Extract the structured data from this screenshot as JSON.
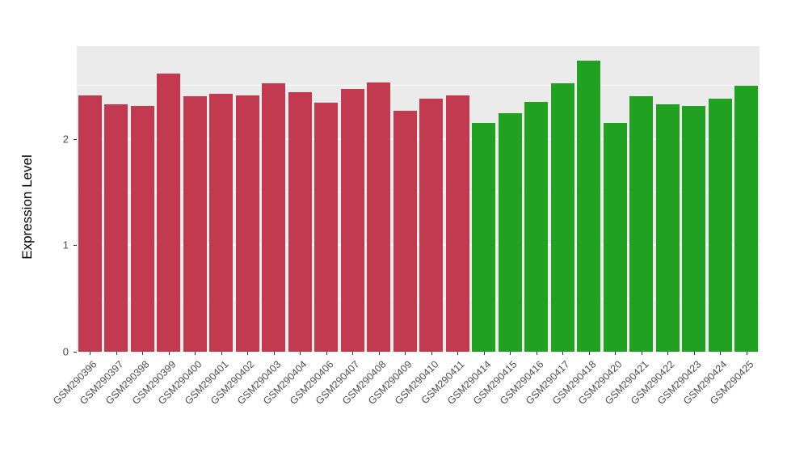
{
  "chart_data": {
    "type": "bar",
    "title": "",
    "xlabel": "",
    "ylabel": "Expression Level",
    "categories": [
      "GSM290396",
      "GSM290397",
      "GSM290398",
      "GSM290399",
      "GSM290400",
      "GSM290401",
      "GSM290402",
      "GSM290403",
      "GSM290404",
      "GSM290406",
      "GSM290407",
      "GSM290408",
      "GSM290409",
      "GSM290410",
      "GSM290411",
      "GSM290414",
      "GSM290415",
      "GSM290416",
      "GSM290417",
      "GSM290418",
      "GSM290420",
      "GSM290421",
      "GSM290422",
      "GSM290423",
      "GSM290424",
      "GSM290425"
    ],
    "values": [
      2.41,
      2.32,
      2.31,
      2.61,
      2.4,
      2.42,
      2.41,
      2.52,
      2.44,
      2.34,
      2.47,
      2.53,
      2.26,
      2.38,
      2.41,
      2.15,
      2.24,
      2.35,
      2.52,
      2.73,
      2.15,
      2.4,
      2.32,
      2.31,
      2.38,
      2.5
    ],
    "groups": [
      "red",
      "red",
      "red",
      "red",
      "red",
      "red",
      "red",
      "red",
      "red",
      "red",
      "red",
      "red",
      "red",
      "red",
      "red",
      "green",
      "green",
      "green",
      "green",
      "green",
      "green",
      "green",
      "green",
      "green",
      "green",
      "green"
    ],
    "group_colors": {
      "red": "#C23A50",
      "green": "#21A021"
    },
    "yticks": [
      0,
      1,
      2
    ],
    "minor_yticks": [
      0.5,
      1.5,
      2.5
    ],
    "ylim": [
      0,
      2.87
    ],
    "grid": "on",
    "legend": "none",
    "panel_bg": "#EBEBEB",
    "gridline_color": "#FFFFFF",
    "tick_text_color": "#4D4D4D"
  }
}
